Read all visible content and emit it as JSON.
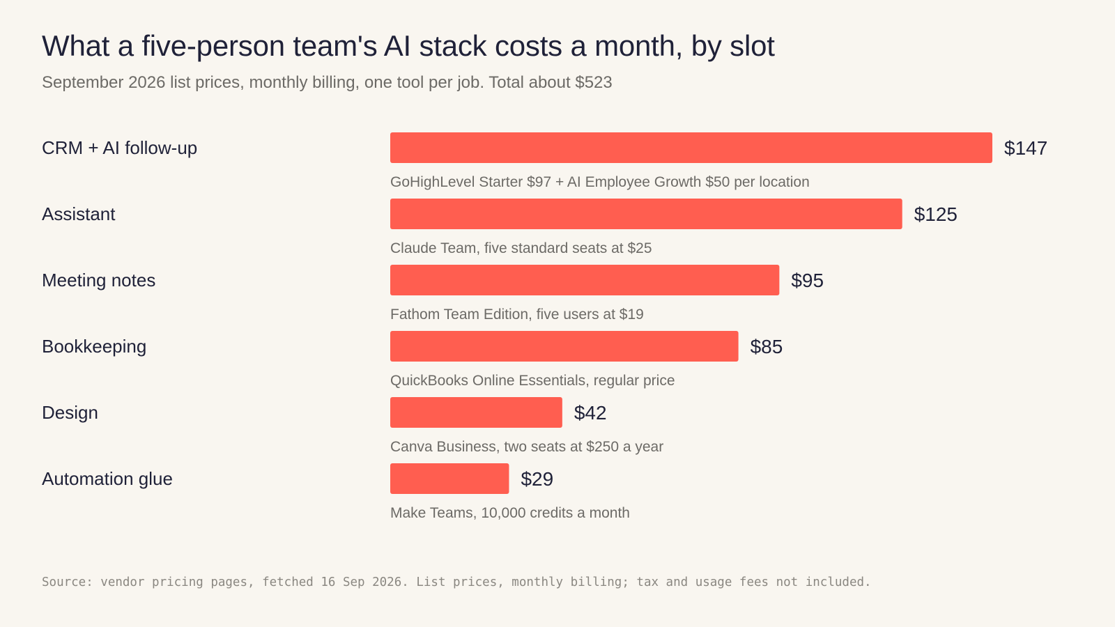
{
  "header": {
    "title": "What a five-person team's AI stack costs a month, by slot",
    "subtitle": "September 2026 list prices, monthly billing, one tool per job. Total about $523"
  },
  "footer": {
    "source": "Source: vendor pricing pages, fetched 16 Sep 2026. List prices, monthly billing; tax and usage fees not included."
  },
  "colors": {
    "bar": "#ff5e50",
    "category_text": "#1f2138",
    "value_text": "#1f2138",
    "note_text": "#6c6a66"
  },
  "chart_data": {
    "type": "bar",
    "orientation": "horizontal",
    "title": "What a five-person team's AI stack costs a month, by slot",
    "subtitle": "September 2026 list prices, monthly billing, one tool per job. Total about $523",
    "categories": [
      "CRM + AI follow-up",
      "Assistant",
      "Meeting notes",
      "Bookkeeping",
      "Design",
      "Automation glue"
    ],
    "values": [
      147,
      125,
      95,
      85,
      42,
      29
    ],
    "value_labels": [
      "$147",
      "$125",
      "$95",
      "$85",
      "$42",
      "$29"
    ],
    "notes": [
      "GoHighLevel Starter $97 + AI Employee Growth $50 per location",
      "Claude Team, five standard seats at $25",
      "Fathom Team Edition, five users at $19",
      "QuickBooks Online Essentials, regular price",
      "Canva Business, two seats at $250 a year",
      "Make Teams, 10,000 credits a month"
    ],
    "xlim": [
      0,
      147
    ],
    "grid": false,
    "legend": "none"
  }
}
